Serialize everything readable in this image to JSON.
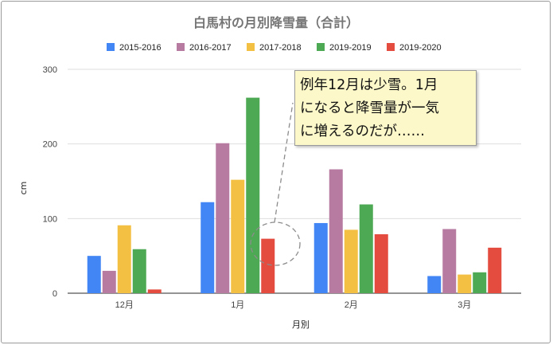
{
  "chart_data": {
    "type": "bar",
    "title": "白馬村の月別降雪量（合計）",
    "xlabel": "月別",
    "ylabel": "cm",
    "categories": [
      "12月",
      "1月",
      "2月",
      "3月"
    ],
    "yticks": [
      "0",
      "100",
      "200",
      "300"
    ],
    "ylim": [
      0,
      300
    ],
    "grid": true,
    "legend_position": "top",
    "series": [
      {
        "name": "2015-2016",
        "color": "#4285f4",
        "values": [
          50,
          122,
          94,
          23
        ]
      },
      {
        "name": "2016-2017",
        "color": "#b77ba1",
        "values": [
          30,
          201,
          166,
          86
        ]
      },
      {
        "name": "2017-2018",
        "color": "#f4c044",
        "values": [
          91,
          152,
          85,
          25
        ]
      },
      {
        "name": "2019-2019",
        "color": "#4ea954",
        "values": [
          59,
          262,
          119,
          28
        ]
      },
      {
        "name": "2019-2020",
        "color": "#e34c3f",
        "values": [
          5,
          73,
          79,
          61
        ]
      }
    ],
    "annotation": {
      "lines": [
        "例年12月は少雪。1月",
        "になると降雪量が一気",
        "に増えるのだが……"
      ]
    }
  }
}
